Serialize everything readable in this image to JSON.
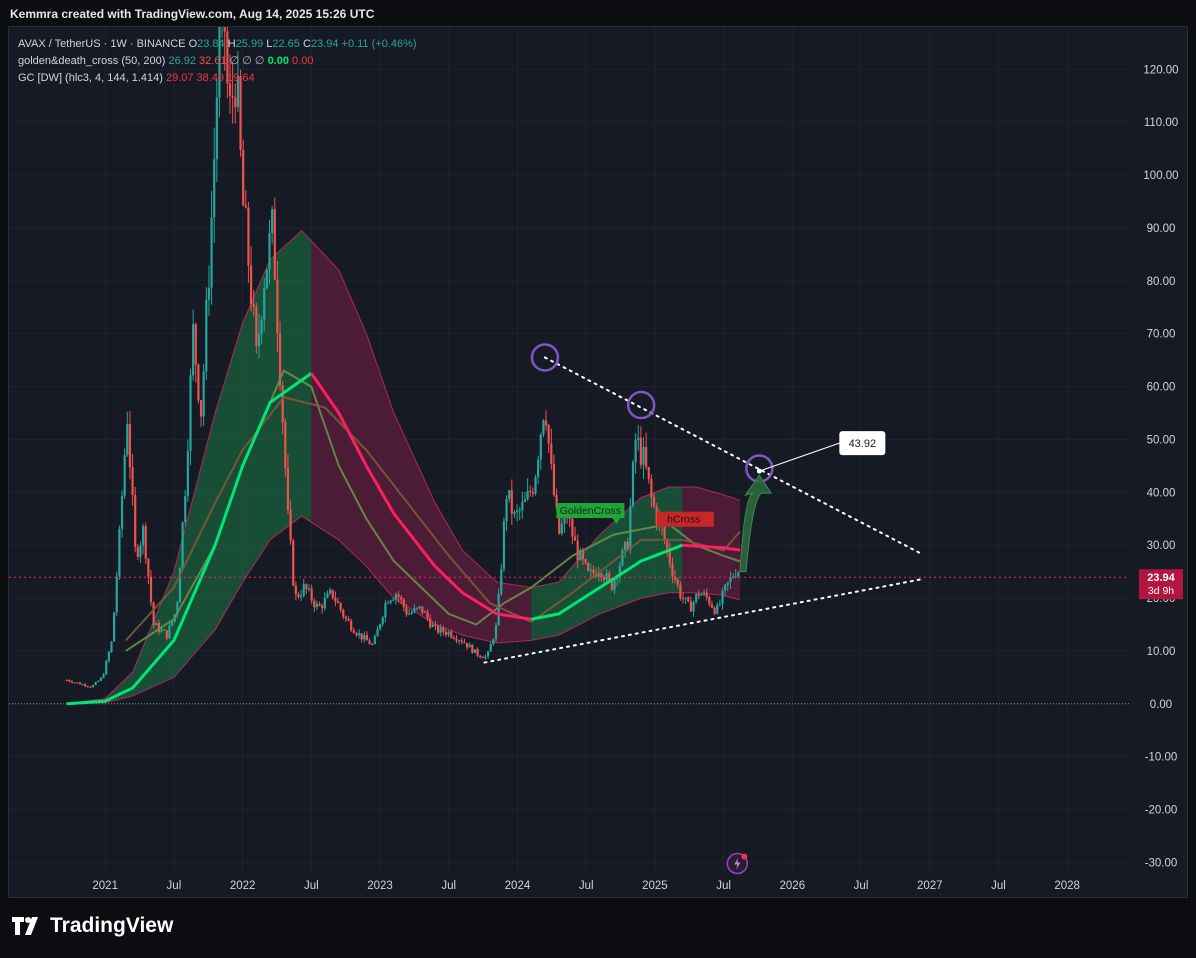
{
  "header": {
    "caption": "Kemmra created with TradingView.com, Aug 14, 2025 15:26 UTC"
  },
  "legend": {
    "symbol": "AVAX / TetherUS · 1W · BINANCE",
    "ohlc": {
      "o_label": "O",
      "o": "23.84",
      "h_label": "H",
      "h": "25.99",
      "l_label": "L",
      "l": "22.65",
      "c_label": "C",
      "c": "23.94",
      "change": "+0.11 (+0.46%)"
    },
    "indicator1": {
      "name": "golden&death_cross (50, 200)",
      "v1": "26.92",
      "v2": "32.61",
      "symbols": "∅ ∅ ∅",
      "v3": "0.00",
      "v4": "0.00"
    },
    "indicator2": {
      "name": "GC [DW] (hlc3, 4, 144, 1.414)",
      "v1": "29.07",
      "v2": "38.49",
      "v3": "19.64"
    }
  },
  "footer": {
    "brand": "TradingView"
  },
  "colors": {
    "up": "#26a69a",
    "down": "#ef5350",
    "bright_green": "#00e676",
    "pink": "#ff1e5f",
    "band_green": "#1e7a46",
    "band_red": "#7a1e44",
    "circle": "#7e57c2",
    "bg": "#161a25"
  },
  "chart_data": {
    "type": "candlestick",
    "title": "AVAX / TetherUS · 1W · BINANCE",
    "y_axis": {
      "ylim": [
        -32,
        128
      ],
      "ticks": [
        120,
        110,
        100,
        90,
        80,
        70,
        60,
        50,
        40,
        30,
        20,
        10,
        0,
        -10,
        -20,
        -30
      ],
      "tick_labels": [
        "120.00",
        "110.00",
        "100.00",
        "90.00",
        "80.00",
        "70.00",
        "60.00",
        "50.00",
        "40.00",
        "30.00",
        "20.00",
        "10.00",
        "0.00",
        "-10.00",
        "-20.00",
        "-30.00"
      ]
    },
    "x_axis": {
      "xlim": [
        2020.3,
        2028.45
      ],
      "ticks": [
        2021.0,
        2021.5,
        2022.0,
        2022.5,
        2023.0,
        2023.5,
        2024.0,
        2024.5,
        2025.0,
        2025.5,
        2026.0,
        2026.5,
        2027.0,
        2027.5,
        2028.0
      ],
      "tick_labels": [
        "2021",
        "Jul",
        "2022",
        "Jul",
        "2023",
        "Jul",
        "2024",
        "Jul",
        "2025",
        "Jul",
        "2026",
        "Jul",
        "2027",
        "Jul",
        "2028"
      ]
    },
    "price_path": [
      [
        2020.72,
        4.5
      ],
      [
        2020.9,
        3.2
      ],
      [
        2020.98,
        5
      ],
      [
        2021.05,
        12
      ],
      [
        2021.1,
        30
      ],
      [
        2021.16,
        55
      ],
      [
        2021.22,
        28
      ],
      [
        2021.28,
        33
      ],
      [
        2021.35,
        15
      ],
      [
        2021.45,
        13
      ],
      [
        2021.52,
        18
      ],
      [
        2021.58,
        40
      ],
      [
        2021.64,
        70
      ],
      [
        2021.7,
        55
      ],
      [
        2021.78,
        95
      ],
      [
        2021.85,
        140
      ],
      [
        2021.9,
        110
      ],
      [
        2021.95,
        120
      ],
      [
        2022.0,
        95
      ],
      [
        2022.05,
        82
      ],
      [
        2022.1,
        65
      ],
      [
        2022.15,
        80
      ],
      [
        2022.22,
        90
      ],
      [
        2022.28,
        60
      ],
      [
        2022.33,
        35
      ],
      [
        2022.38,
        20
      ],
      [
        2022.45,
        22
      ],
      [
        2022.55,
        18
      ],
      [
        2022.65,
        21
      ],
      [
        2022.75,
        16
      ],
      [
        2022.85,
        13
      ],
      [
        2022.95,
        11
      ],
      [
        2023.05,
        20
      ],
      [
        2023.12,
        21
      ],
      [
        2023.2,
        17
      ],
      [
        2023.3,
        18
      ],
      [
        2023.4,
        14
      ],
      [
        2023.5,
        13.5
      ],
      [
        2023.6,
        12
      ],
      [
        2023.7,
        9.5
      ],
      [
        2023.78,
        8.8
      ],
      [
        2023.85,
        15
      ],
      [
        2023.92,
        40
      ],
      [
        2023.98,
        35
      ],
      [
        2024.06,
        38
      ],
      [
        2024.12,
        42
      ],
      [
        2024.2,
        58
      ],
      [
        2024.24,
        45
      ],
      [
        2024.3,
        32
      ],
      [
        2024.36,
        36
      ],
      [
        2024.43,
        29
      ],
      [
        2024.52,
        24
      ],
      [
        2024.6,
        26
      ],
      [
        2024.68,
        22
      ],
      [
        2024.75,
        27
      ],
      [
        2024.8,
        30
      ],
      [
        2024.86,
        50
      ],
      [
        2024.92,
        46
      ],
      [
        2024.98,
        38
      ],
      [
        2025.05,
        33
      ],
      [
        2025.12,
        26
      ],
      [
        2025.18,
        21
      ],
      [
        2025.25,
        18
      ],
      [
        2025.32,
        21
      ],
      [
        2025.38,
        20
      ],
      [
        2025.45,
        17.5
      ],
      [
        2025.52,
        22
      ],
      [
        2025.6,
        26
      ],
      [
        2025.62,
        23.94
      ]
    ],
    "series": [
      {
        "name": "golden&death_cross (50, 200)",
        "points": [
          [
            2021.15,
            10
          ],
          [
            2021.5,
            16
          ],
          [
            2021.8,
            30
          ],
          [
            2022.0,
            45
          ],
          [
            2022.3,
            63
          ],
          [
            2022.5,
            60
          ],
          [
            2022.7,
            45
          ],
          [
            2022.9,
            35
          ],
          [
            2023.1,
            27
          ],
          [
            2023.3,
            22
          ],
          [
            2023.5,
            17
          ],
          [
            2023.7,
            15
          ],
          [
            2023.9,
            19
          ],
          [
            2024.1,
            22
          ],
          [
            2024.4,
            28
          ],
          [
            2024.7,
            32
          ],
          [
            2024.9,
            33
          ],
          [
            2025.1,
            34
          ],
          [
            2025.3,
            30
          ],
          [
            2025.5,
            28
          ],
          [
            2025.62,
            26.92
          ]
        ]
      },
      {
        "name": "golden&death_cross (50, 200)",
        "points": [
          [
            2021.15,
            12
          ],
          [
            2021.5,
            22
          ],
          [
            2021.8,
            38
          ],
          [
            2022.0,
            48
          ],
          [
            2022.3,
            58
          ],
          [
            2022.6,
            56
          ],
          [
            2022.9,
            48
          ],
          [
            2023.2,
            38
          ],
          [
            2023.5,
            28
          ],
          [
            2023.8,
            19
          ],
          [
            2024.1,
            15.5
          ],
          [
            2024.4,
            21
          ],
          [
            2024.7,
            27
          ],
          [
            2024.9,
            31
          ],
          [
            2025.2,
            31
          ],
          [
            2025.5,
            29
          ],
          [
            2025.62,
            32.61
          ]
        ]
      },
      {
        "name": "GC [DW] (hlc3, 4, 144, 1.414)",
        "points": [
          [
            2020.72,
            0
          ],
          [
            2021.0,
            0.5
          ],
          [
            2021.2,
            3
          ],
          [
            2021.5,
            12
          ],
          [
            2021.8,
            30
          ],
          [
            2022.0,
            45
          ],
          [
            2022.2,
            57
          ],
          [
            2022.5,
            62.5
          ],
          [
            2022.7,
            55
          ],
          [
            2022.9,
            45
          ],
          [
            2023.1,
            36
          ],
          [
            2023.4,
            26
          ],
          [
            2023.6,
            21
          ],
          [
            2023.85,
            17
          ],
          [
            2024.1,
            16
          ],
          [
            2024.3,
            17
          ],
          [
            2024.6,
            22
          ],
          [
            2024.9,
            27
          ],
          [
            2025.2,
            30
          ],
          [
            2025.5,
            29.5
          ],
          [
            2025.62,
            29.07
          ]
        ]
      },
      {
        "name": "GC [DW] upper",
        "points": [
          [
            2020.72,
            0
          ],
          [
            2021.0,
            1
          ],
          [
            2021.2,
            6
          ],
          [
            2021.5,
            25
          ],
          [
            2021.8,
            55
          ],
          [
            2022.0,
            72
          ],
          [
            2022.2,
            84
          ],
          [
            2022.43,
            89.5
          ],
          [
            2022.7,
            82
          ],
          [
            2022.9,
            70
          ],
          [
            2023.1,
            55
          ],
          [
            2023.4,
            38
          ],
          [
            2023.6,
            29
          ],
          [
            2023.85,
            23
          ],
          [
            2024.1,
            22
          ],
          [
            2024.3,
            23
          ],
          [
            2024.6,
            32
          ],
          [
            2024.9,
            39
          ],
          [
            2025.1,
            41
          ],
          [
            2025.3,
            41
          ],
          [
            2025.5,
            39.5
          ],
          [
            2025.62,
            38.49
          ]
        ]
      },
      {
        "name": "GC [DW] lower",
        "points": [
          [
            2020.72,
            0
          ],
          [
            2021.0,
            0.2
          ],
          [
            2021.2,
            1.5
          ],
          [
            2021.5,
            5
          ],
          [
            2021.8,
            14
          ],
          [
            2022.0,
            23
          ],
          [
            2022.2,
            31
          ],
          [
            2022.43,
            35.5
          ],
          [
            2022.7,
            31
          ],
          [
            2022.9,
            26
          ],
          [
            2023.1,
            20
          ],
          [
            2023.4,
            15
          ],
          [
            2023.6,
            13
          ],
          [
            2023.85,
            11.5
          ],
          [
            2024.1,
            12
          ],
          [
            2024.3,
            13
          ],
          [
            2024.6,
            17
          ],
          [
            2024.9,
            20
          ],
          [
            2025.1,
            21
          ],
          [
            2025.3,
            21
          ],
          [
            2025.5,
            20.5
          ],
          [
            2025.62,
            19.64
          ]
        ]
      }
    ],
    "trendlines": {
      "upper": {
        "from": [
          2024.2,
          65.5
        ],
        "to": [
          2026.93,
          28.5
        ]
      },
      "lower": {
        "from": [
          2023.76,
          7.8
        ],
        "to": [
          2026.93,
          23.5
        ]
      }
    },
    "circles": [
      [
        2024.2,
        65.5
      ],
      [
        2024.9,
        56.5
      ],
      [
        2025.76,
        44.5
      ]
    ],
    "projection_arrow": {
      "from": [
        2025.62,
        25
      ],
      "to": [
        2025.76,
        44
      ]
    },
    "annotations": [
      {
        "label": "43.92",
        "anchor": [
          2025.76,
          44
        ]
      },
      {
        "label": "GoldenCross",
        "at": [
          2024.72,
          34
        ]
      },
      {
        "label": "DeathCross",
        "visible_text": "hCross",
        "at": [
          2025.05,
          35
        ]
      }
    ],
    "last_price": {
      "value": 23.94,
      "label": "23.94",
      "countdown": "3d 9h"
    }
  }
}
